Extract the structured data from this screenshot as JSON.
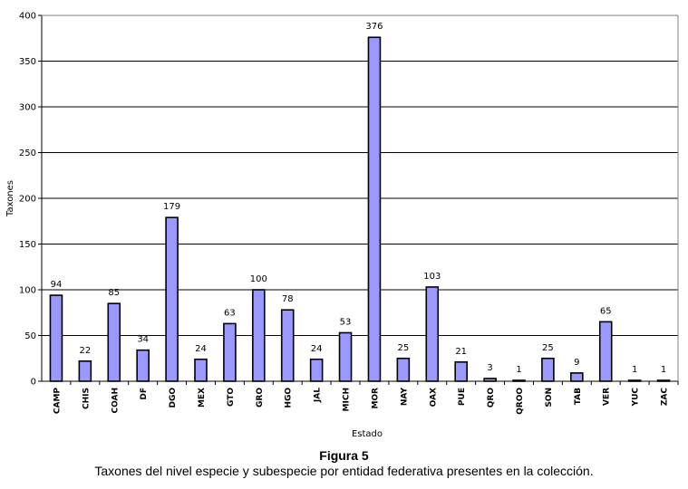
{
  "chart_data": {
    "type": "bar",
    "title": "",
    "xlabel": "Estado",
    "ylabel": "Taxones",
    "ylim": [
      0,
      400
    ],
    "yticks": [
      0,
      50,
      100,
      150,
      200,
      250,
      300,
      350,
      400
    ],
    "grid": true,
    "categories": [
      "CAMP",
      "CHIS",
      "COAH",
      "DF",
      "DGO",
      "MEX",
      "GTO",
      "GRO",
      "HGO",
      "JAL",
      "MICH",
      "MOR",
      "NAY",
      "OAX",
      "PUE",
      "QRO",
      "QROO",
      "SON",
      "TAB",
      "VER",
      "YUC",
      "ZAC"
    ],
    "values": [
      94,
      22,
      85,
      34,
      179,
      24,
      63,
      100,
      78,
      24,
      53,
      376,
      25,
      103,
      21,
      3,
      1,
      25,
      9,
      65,
      1,
      1
    ],
    "bar_color": "#9999ff",
    "border_color": "#000000"
  },
  "caption": {
    "title": "Figura 5",
    "text": "Taxones del nivel especie y subespecie por entidad federativa presentes en la colección."
  }
}
